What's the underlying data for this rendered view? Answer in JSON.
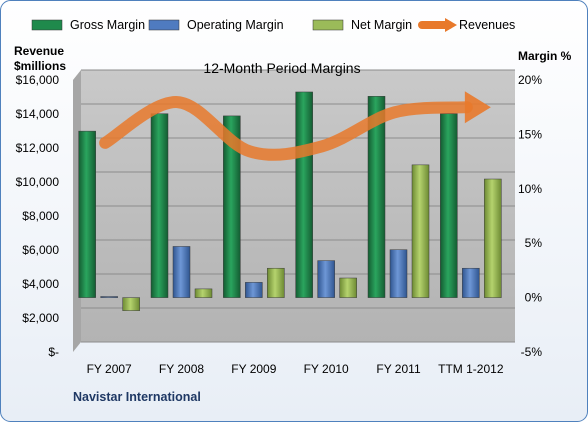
{
  "chart_data": {
    "type": "bar",
    "title": "12-Month Period Margins",
    "company": "Navistar International",
    "left_axis_title": [
      "Revenue",
      "$millions"
    ],
    "right_axis_title": "Margin %",
    "left_ticks": [
      "$16,000",
      "$14,000",
      "$12,000",
      "$10,000",
      "$8,000",
      "$6,000",
      "$4,000",
      "$2,000",
      "$-"
    ],
    "right_ticks": [
      "20%",
      "15%",
      "10%",
      "5%",
      "0%",
      "-5%"
    ],
    "left_ylim": [
      0,
      16000
    ],
    "right_ylim": [
      -5,
      20
    ],
    "categories": [
      "FY 2007",
      "FY 2008",
      "FY 2009",
      "FY 2010",
      "FY 2011",
      "TTM 1-2012"
    ],
    "series": [
      {
        "name": "Gross Margin",
        "axis": "right",
        "color": "#1f8a4c",
        "values": [
          15.3,
          16.9,
          16.7,
          18.9,
          18.5,
          16.9
        ]
      },
      {
        "name": "Operating Margin",
        "axis": "right",
        "color": "#4f7bc0",
        "values": [
          0.1,
          4.7,
          1.4,
          3.4,
          4.4,
          2.7
        ]
      },
      {
        "name": "Net Margin",
        "axis": "right",
        "color": "#9bbb59",
        "values": [
          -1.2,
          0.8,
          2.7,
          1.8,
          12.2,
          10.9
        ]
      },
      {
        "name": "Revenues",
        "axis": "left",
        "type": "line",
        "color": "#e8792b",
        "values": [
          12300,
          14700,
          11800,
          12100,
          14100,
          14400
        ]
      }
    ],
    "grid": true,
    "legend_position": "top"
  }
}
